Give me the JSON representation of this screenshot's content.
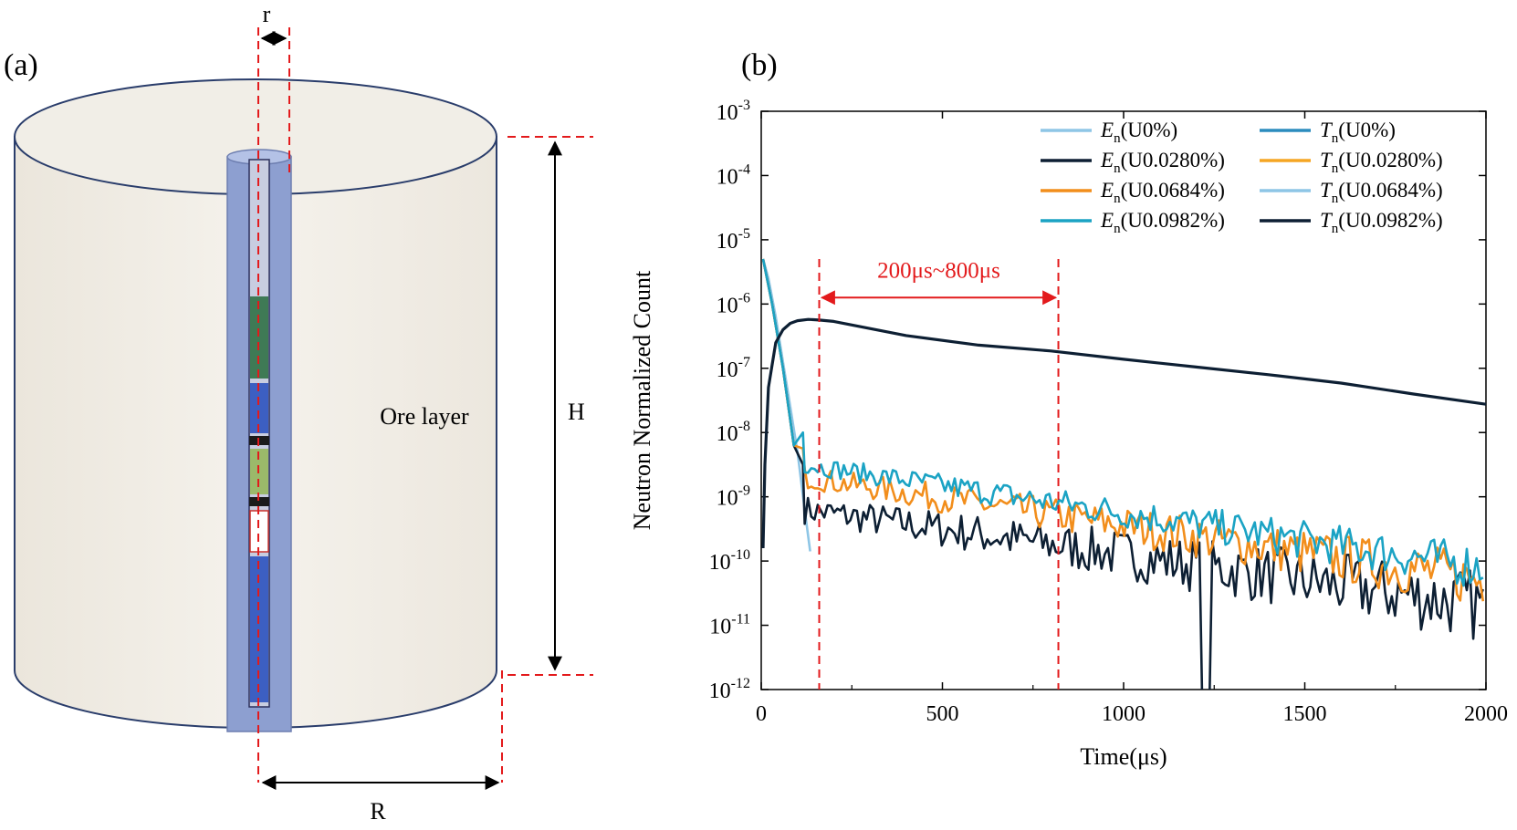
{
  "panel_a": {
    "label": "(a)",
    "ore_label": "Ore layer",
    "height_label": "H",
    "radius_label": "R",
    "borehole_label": "r"
  },
  "panel_b": {
    "label": "(b)"
  },
  "chart_data": {
    "type": "line",
    "title": "",
    "xlabel": "Time(μs)",
    "ylabel": "Neutron Normalized Count",
    "xlim": [
      0,
      2000
    ],
    "ylim_log10": [
      -12,
      -3
    ],
    "y_scale": "log",
    "x_ticks": [
      0,
      500,
      1000,
      1500,
      2000
    ],
    "x_tick_labels": [
      "0",
      "500",
      "1000",
      "1500",
      "2000"
    ],
    "y_tick_labels": [
      {
        "base": "10",
        "exp": "-12"
      },
      {
        "base": "10",
        "exp": "-11"
      },
      {
        "base": "10",
        "exp": "-10"
      },
      {
        "base": "10",
        "exp": "-9"
      },
      {
        "base": "10",
        "exp": "-8"
      },
      {
        "base": "10",
        "exp": "-7"
      },
      {
        "base": "10",
        "exp": "-6"
      },
      {
        "base": "10",
        "exp": "-5"
      },
      {
        "base": "10",
        "exp": "-4"
      },
      {
        "base": "10",
        "exp": "-3"
      }
    ],
    "legend_position": "top-right",
    "legend": [
      {
        "symbol": "E",
        "sub": "n",
        "suffix": "(U0%)",
        "color": "#8ec6e6"
      },
      {
        "symbol": "T",
        "sub": "n",
        "suffix": "(U0%)",
        "color": "#2b8cbe"
      },
      {
        "symbol": "E",
        "sub": "n",
        "suffix": "(U0.0280%)",
        "color": "#0d1f33"
      },
      {
        "symbol": "T",
        "sub": "n",
        "suffix": "(U0.0280%)",
        "color": "#f5a623"
      },
      {
        "symbol": "E",
        "sub": "n",
        "suffix": "(U0.0684%)",
        "color": "#f28e1c"
      },
      {
        "symbol": "T",
        "sub": "n",
        "suffix": "(U0.0684%)",
        "color": "#8ec6e6"
      },
      {
        "symbol": "E",
        "sub": "n",
        "suffix": "(U0.0982%)",
        "color": "#1ba3c4"
      },
      {
        "symbol": "T",
        "sub": "n",
        "suffix": "(U0.0982%)",
        "color": "#0d1f33"
      }
    ],
    "annotation": {
      "text": "200μs~800μs",
      "x_start": 160,
      "x_end": 820,
      "arrow_y_log10": -5.9,
      "color": "#e31a1c"
    },
    "epithermal_curves": [
      {
        "name": "En(U0%)",
        "color": "#8ec6e6",
        "x": [
          5,
          20,
          40,
          60,
          80,
          100,
          120,
          135
        ],
        "log10_y": [
          -5.3,
          -5.6,
          -6.2,
          -6.9,
          -7.6,
          -8.3,
          -9.2,
          -9.85
        ]
      },
      {
        "name": "En(U0.0280%)",
        "color": "#0d1f33",
        "x_start": 5,
        "x_end": 2000,
        "base_start": -9.2,
        "base_end": -10.7,
        "noise": 0.22
      },
      {
        "name": "En(U0.0684%)",
        "color": "#f28e1c",
        "x_start": 5,
        "x_end": 2000,
        "base_start": -8.7,
        "base_end": -10.3,
        "noise": 0.17
      },
      {
        "name": "En(U0.0982%)",
        "color": "#1ba3c4",
        "x_start": 5,
        "x_end": 2000,
        "base_start": -8.5,
        "base_end": -10.1,
        "noise": 0.14
      }
    ],
    "thermal_curve": {
      "name": "Tn (all U contents, overlapping)",
      "color": "#0d1f33",
      "x": [
        5,
        10,
        20,
        40,
        60,
        80,
        100,
        130,
        160,
        200,
        400,
        600,
        800,
        1000,
        1200,
        1400,
        1600,
        1800,
        2000
      ],
      "log10_y": [
        -9.8,
        -8.5,
        -7.3,
        -6.6,
        -6.4,
        -6.3,
        -6.26,
        -6.24,
        -6.25,
        -6.27,
        -6.49,
        -6.64,
        -6.73,
        -6.86,
        -6.98,
        -7.1,
        -7.23,
        -7.4,
        -7.56
      ]
    }
  }
}
